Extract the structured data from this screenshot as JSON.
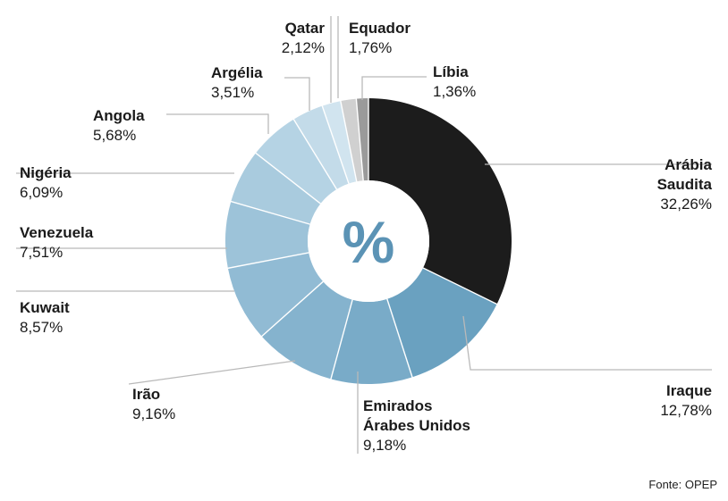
{
  "chart_data": {
    "type": "pie",
    "center_label": "%",
    "source": "Fonte: OPEP",
    "slices": [
      {
        "name_lines": [
          "Arábia",
          "Saudita"
        ],
        "value": 32.26,
        "value_label": "32,26%",
        "color": "#1c1c1c"
      },
      {
        "name_lines": [
          "Iraque"
        ],
        "value": 12.78,
        "value_label": "12,78%",
        "color": "#6aa1c0"
      },
      {
        "name_lines": [
          "Emirados",
          "Árabes Unidos"
        ],
        "value": 9.18,
        "value_label": "9,18%",
        "color": "#79abc8"
      },
      {
        "name_lines": [
          "Irão"
        ],
        "value": 9.16,
        "value_label": "9,16%",
        "color": "#85b3ce"
      },
      {
        "name_lines": [
          "Kuwait"
        ],
        "value": 8.57,
        "value_label": "8,57%",
        "color": "#91bbd4"
      },
      {
        "name_lines": [
          "Venezuela"
        ],
        "value": 7.51,
        "value_label": "7,51%",
        "color": "#9dc3d9"
      },
      {
        "name_lines": [
          "Nigéria"
        ],
        "value": 6.09,
        "value_label": "6,09%",
        "color": "#a9cbde"
      },
      {
        "name_lines": [
          "Angola"
        ],
        "value": 5.68,
        "value_label": "5,68%",
        "color": "#b5d3e4"
      },
      {
        "name_lines": [
          "Argélia"
        ],
        "value": 3.51,
        "value_label": "3,51%",
        "color": "#c3dbe9"
      },
      {
        "name_lines": [
          "Qatar"
        ],
        "value": 2.12,
        "value_label": "2,12%",
        "color": "#d1e4ef"
      },
      {
        "name_lines": [
          "Equador"
        ],
        "value": 1.76,
        "value_label": "1,76%",
        "color": "#d0d0d0"
      },
      {
        "name_lines": [
          "Líbia"
        ],
        "value": 1.36,
        "value_label": "1,36%",
        "color": "#9a9a9a"
      }
    ]
  }
}
